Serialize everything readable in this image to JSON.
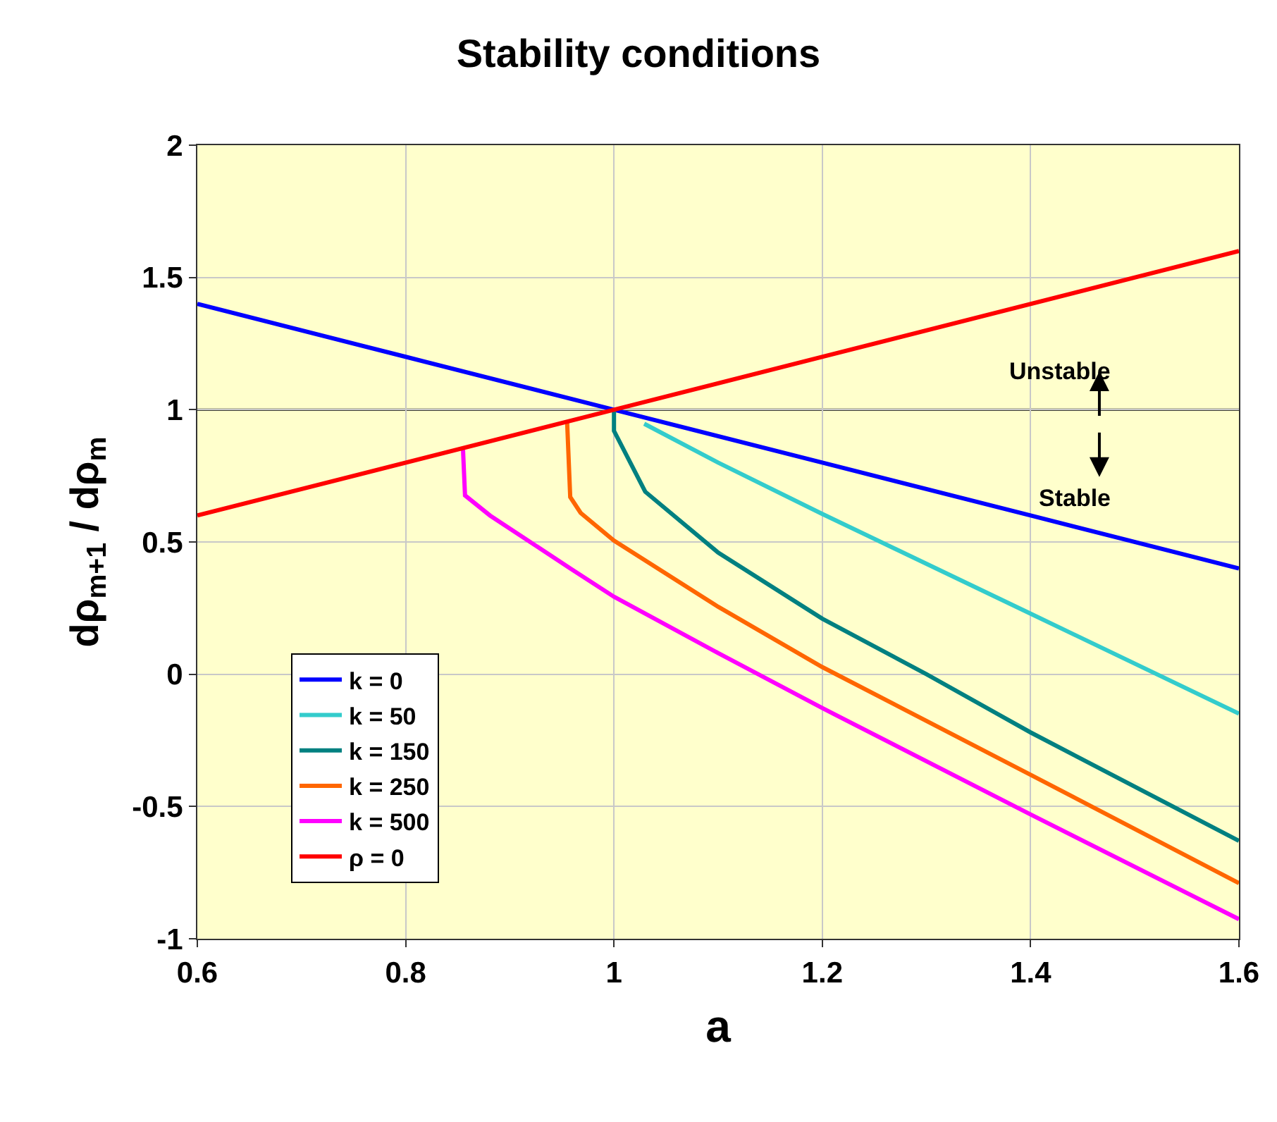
{
  "chart_data": {
    "type": "line",
    "title": "Stability conditions",
    "xlabel": "a",
    "ylabel": "dρ$_{m+1}$ / dρ$_{m}$",
    "xlim": [
      0.6,
      1.6
    ],
    "xticks": [
      0.6,
      0.8,
      1,
      1.2,
      1.4,
      1.6
    ],
    "ylim": [
      -1,
      2
    ],
    "yticks": [
      -1,
      -0.5,
      0,
      0.5,
      1,
      1.5,
      2
    ],
    "grid": true,
    "legend": "bottom left",
    "marker": "none",
    "line_style": "solid",
    "ref_lines": [
      {
        "axis": "y",
        "value": 1,
        "label": null,
        "color": "#000000"
      }
    ],
    "annotations": [
      "Unstable",
      "Stable"
    ],
    "series": [
      {
        "name": "k = 0",
        "color": "#0000ff",
        "x": [
          0.6,
          0.8,
          1.0,
          1.2,
          1.4,
          1.6
        ],
        "values": [
          1.4,
          1.2,
          1.0,
          0.8,
          0.6,
          0.4
        ]
      },
      {
        "name": "k = 50",
        "color": "#33cccc",
        "x": [
          1.029,
          1.1,
          1.2,
          1.4,
          1.6
        ],
        "values": [
          0.947,
          0.8,
          0.606,
          0.229,
          -0.149
        ]
      },
      {
        "name": "k = 150",
        "color": "#008080",
        "x": [
          1.0,
          1.0,
          1.03,
          1.1,
          1.2,
          1.3,
          1.4,
          1.6
        ],
        "values": [
          1.0,
          0.92,
          0.69,
          0.46,
          0.21,
          0.0,
          -0.22,
          -0.63
        ]
      },
      {
        "name": "k = 250",
        "color": "#ff6600",
        "x": [
          0.955,
          0.958,
          0.968,
          1.0,
          1.1,
          1.2,
          1.4,
          1.6
        ],
        "values": [
          0.955,
          0.67,
          0.61,
          0.505,
          0.255,
          0.027,
          -0.38,
          -0.79
        ]
      },
      {
        "name": "k = 500",
        "color": "#ff00ff",
        "x": [
          0.855,
          0.857,
          0.881,
          0.958,
          1.0,
          1.1,
          1.2,
          1.4,
          1.6
        ],
        "values": [
          0.855,
          0.676,
          0.6,
          0.4,
          0.293,
          0.08,
          -0.128,
          -0.53,
          -0.926
        ]
      },
      {
        "name": "ρ = 0",
        "color": "#ff0000",
        "x": [
          0.6,
          1.0,
          1.6
        ],
        "values": [
          0.6,
          1.0,
          1.6
        ]
      }
    ]
  }
}
